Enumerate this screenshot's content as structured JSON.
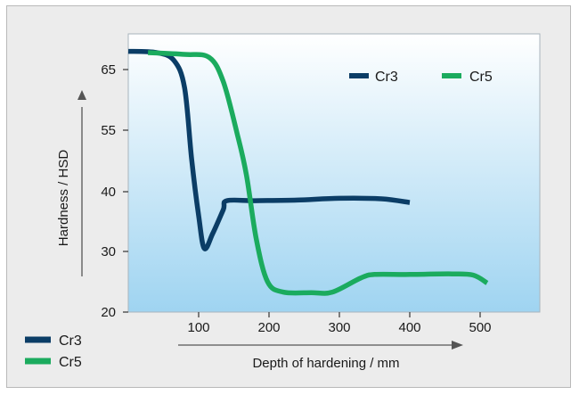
{
  "chart_data": {
    "type": "line",
    "title": "",
    "xlabel": "Depth of hardening / mm",
    "ylabel": "Hardness / HSD",
    "xlim": [
      0,
      600
    ],
    "x_ticks": [
      100,
      200,
      300,
      400,
      500
    ],
    "y_ticks": [
      20,
      30,
      40,
      55,
      65
    ],
    "legend_placement": "top-right inside plot, repeated bottom-left outside plot",
    "series": [
      {
        "name": "Cr3",
        "color": "#0b3d66",
        "points": [
          [
            0,
            68
          ],
          [
            40,
            67.8
          ],
          [
            65,
            66.5
          ],
          [
            80,
            62
          ],
          [
            90,
            48
          ],
          [
            100,
            36
          ],
          [
            108,
            30.5
          ],
          [
            120,
            33
          ],
          [
            135,
            37
          ],
          [
            140,
            38.5
          ],
          [
            180,
            38.5
          ],
          [
            240,
            38.6
          ],
          [
            300,
            38.9
          ],
          [
            360,
            38.8
          ],
          [
            400,
            38.2
          ]
        ]
      },
      {
        "name": "Cr5",
        "color": "#1bab5e",
        "points": [
          [
            28,
            67.8
          ],
          [
            80,
            67.5
          ],
          [
            115,
            67
          ],
          [
            135,
            63
          ],
          [
            155,
            54
          ],
          [
            168,
            44
          ],
          [
            182,
            32
          ],
          [
            198,
            25
          ],
          [
            220,
            23.3
          ],
          [
            260,
            23.2
          ],
          [
            290,
            23.3
          ],
          [
            330,
            25.6
          ],
          [
            350,
            26.2
          ],
          [
            400,
            26.2
          ],
          [
            460,
            26.3
          ],
          [
            490,
            26.1
          ],
          [
            510,
            24.8
          ]
        ]
      }
    ]
  }
}
